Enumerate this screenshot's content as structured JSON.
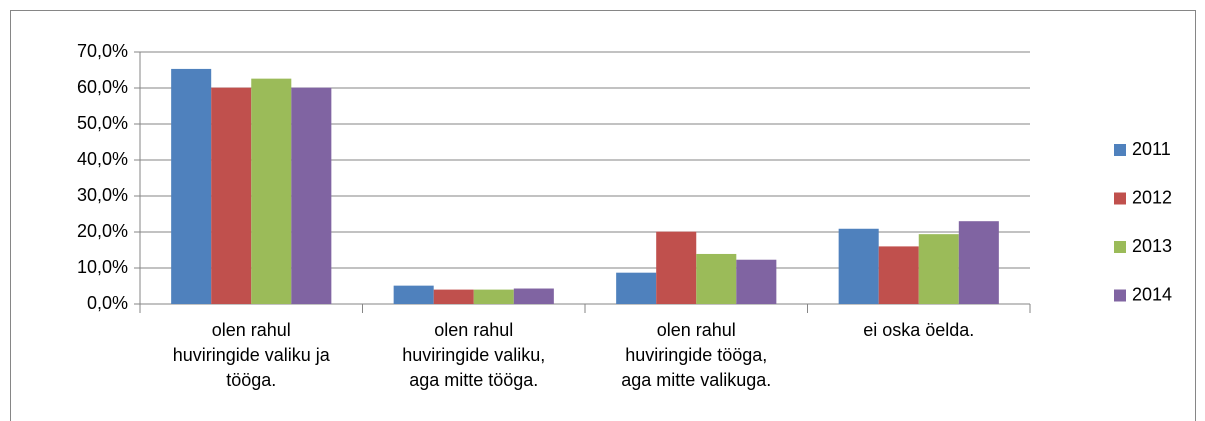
{
  "chart_data": {
    "type": "bar",
    "categories": [
      "olen rahul\nhuviringide valiku ja\ntööga.",
      "olen rahul\nhuviringide valiku,\naga mitte tööga.",
      "olen rahul\nhuviringide tööga,\naga mitte valikuga.",
      "ei oska öelda."
    ],
    "series": [
      {
        "name": "2011",
        "color": "#4f81bd",
        "values": [
          65.3,
          5.1,
          8.7,
          20.9
        ]
      },
      {
        "name": "2012",
        "color": "#c0504d",
        "values": [
          60.1,
          4.0,
          20.1,
          16.0
        ]
      },
      {
        "name": "2013",
        "color": "#9bbb59",
        "values": [
          62.6,
          4.0,
          13.9,
          19.4
        ]
      },
      {
        "name": "2014",
        "color": "#8064a2",
        "values": [
          60.1,
          4.3,
          12.3,
          23.0
        ]
      }
    ],
    "ylim": [
      0,
      70
    ],
    "yticks": [
      {
        "value": 0,
        "label": "0,0%"
      },
      {
        "value": 10,
        "label": "10,0%"
      },
      {
        "value": 20,
        "label": "20,0%"
      },
      {
        "value": 30,
        "label": "30,0%"
      },
      {
        "value": 40,
        "label": "40,0%"
      },
      {
        "value": 50,
        "label": "50,0%"
      },
      {
        "value": 60,
        "label": "60,0%"
      },
      {
        "value": 70,
        "label": "70,0%"
      }
    ],
    "grid": true,
    "legend": "right"
  }
}
